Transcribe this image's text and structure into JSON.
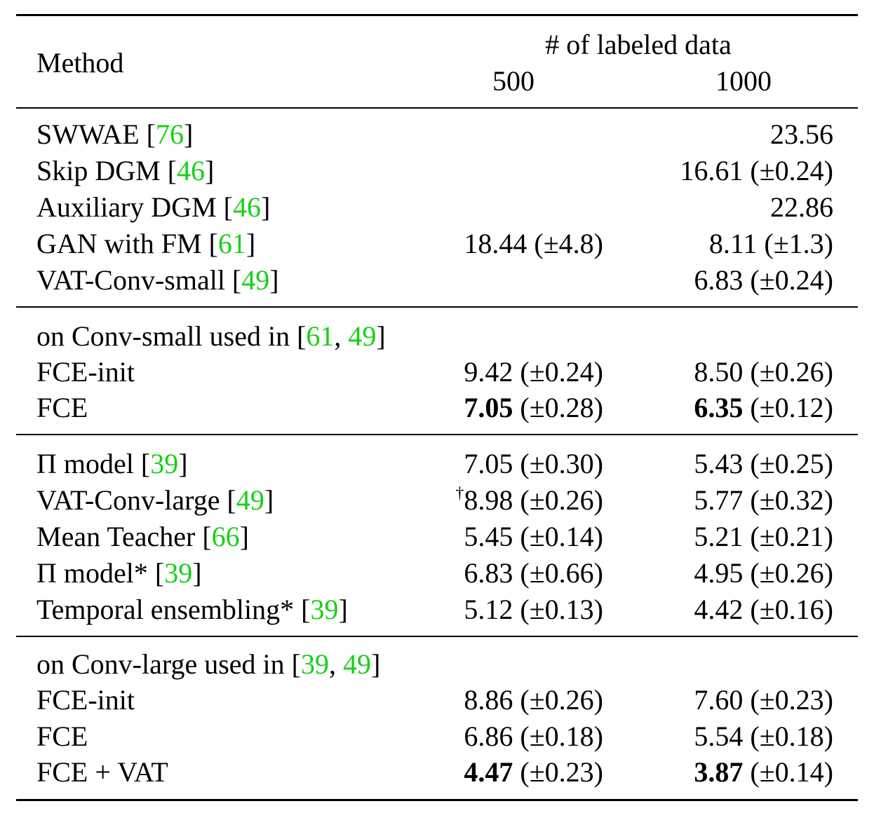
{
  "header": {
    "method": "Method",
    "group": "# of labeled data",
    "col_500": "500",
    "col_1000": "1000"
  },
  "sections": [
    {
      "rows": [
        {
          "method": "SWWAE [",
          "cite": "76",
          "close": "]",
          "v500": "",
          "v1000_main": "23.56",
          "v1000_err": ""
        },
        {
          "method": "Skip DGM [",
          "cite": "46",
          "close": "]",
          "v500": "",
          "v1000_main": "16.61",
          "v1000_err": " (±0.24)"
        },
        {
          "method": "Auxiliary DGM [",
          "cite": "46",
          "close": "]",
          "v500": "",
          "v1000_main": "22.86",
          "v1000_err": ""
        },
        {
          "method": "GAN with FM [",
          "cite": "61",
          "close": "]",
          "v500_main": "18.44",
          "v500_err": " (±4.8)",
          "v1000_main": "8.11",
          "v1000_err": " (±1.3)"
        },
        {
          "method": "VAT-Conv-small [",
          "cite": "49",
          "close": "]",
          "v500": "",
          "v1000_main": "6.83",
          "v1000_err": " (±0.24)"
        }
      ]
    },
    {
      "title_prefix": "on Conv-small used in [",
      "title_cite1": "61",
      "title_sep": ", ",
      "title_cite2": "49",
      "title_close": "]",
      "rows": [
        {
          "method": "FCE-init",
          "v500_main": "9.42",
          "v500_err": " (±0.24)",
          "v1000_main": "8.50",
          "v1000_err": " (±0.26)"
        },
        {
          "method": "FCE",
          "v500_main": "7.05",
          "v500_err": " (±0.28)",
          "v1000_main": "6.35",
          "v1000_err": " (±0.12)"
        }
      ]
    },
    {
      "rows": [
        {
          "method": "Π model [",
          "cite": "39",
          "close": "]",
          "v500_main": "7.05",
          "v500_err": " (±0.30)",
          "v1000_main": "5.43",
          "v1000_err": " (±0.25)"
        },
        {
          "method": "VAT-Conv-large [",
          "cite": "49",
          "close": "]",
          "v500_dag": "†",
          "v500_main": "8.98",
          "v500_err": " (±0.26)",
          "v1000_main": "5.77",
          "v1000_err": " (±0.32)"
        },
        {
          "method": "Mean Teacher [",
          "cite": "66",
          "close": "]",
          "v500_main": "5.45",
          "v500_err": " (±0.14)",
          "v1000_main": "5.21",
          "v1000_err": " (±0.21)"
        },
        {
          "method": "Π model* [",
          "cite": "39",
          "close": "]",
          "v500_main": "6.83",
          "v500_err": " (±0.66)",
          "v1000_main": "4.95",
          "v1000_err": " (±0.26)"
        },
        {
          "method": "Temporal ensembling* [",
          "cite": "39",
          "close": "]",
          "v500_main": "5.12",
          "v500_err": " (±0.13)",
          "v1000_main": "4.42",
          "v1000_err": " (±0.16)"
        }
      ]
    },
    {
      "title_prefix": "on Conv-large used in [",
      "title_cite1": "39",
      "title_sep": ", ",
      "title_cite2": "49",
      "title_close": "]",
      "rows": [
        {
          "method": "FCE-init",
          "v500_main": "8.86",
          "v500_err": " (±0.26)",
          "v1000_main": "7.60",
          "v1000_err": " (±0.23)"
        },
        {
          "method": "FCE",
          "v500_main": "6.86",
          "v500_err": " (±0.18)",
          "v1000_main": "5.54",
          "v1000_err": " (±0.18)"
        },
        {
          "method": "FCE + VAT",
          "v500_main": "4.47",
          "v500_err": " (±0.23)",
          "v1000_main": "3.87",
          "v1000_err": " (±0.14)"
        }
      ]
    }
  ]
}
